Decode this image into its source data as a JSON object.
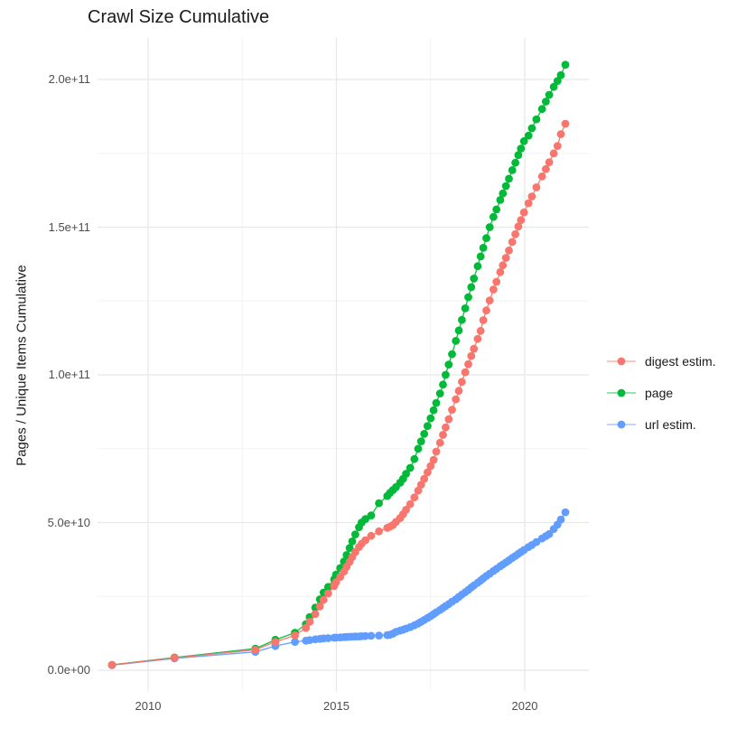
{
  "chart_data": {
    "type": "scatter",
    "title": "Crawl Size Cumulative",
    "xlabel": "",
    "ylabel": "Pages / Unique Items Cumulative",
    "legend_position": "right",
    "grid": true,
    "x_unit": "year (decimal, crawl date)",
    "y_unit": "cumulative count; stored as billions (value * 1e9)",
    "xlim": [
      2008.65,
      2021.7
    ],
    "ylim": [
      -7000000000,
      214000000000
    ],
    "xticks": [
      {
        "label": "2010",
        "year": 2010
      },
      {
        "label": "2015",
        "year": 2015
      },
      {
        "label": "2020",
        "year": 2020
      }
    ],
    "yticks": [
      {
        "label": "0.0e+00",
        "billions": 0
      },
      {
        "label": "5.0e+10",
        "billions": 50
      },
      {
        "label": "1.0e+11",
        "billions": 100
      },
      {
        "label": "1.5e+11",
        "billions": 150
      },
      {
        "label": "2.0e+11",
        "billions": 200
      }
    ],
    "x_minor_gridlines_years": [
      2012.5,
      2017.5
    ],
    "y_minor_gridlines_billions": [
      25,
      75,
      125,
      175
    ],
    "x": [
      2009.04,
      2010.7,
      2012.85,
      2013.38,
      2013.9,
      2014.19,
      2014.29,
      2014.44,
      2014.56,
      2014.66,
      2014.78,
      2014.94,
      2014.99,
      2015.1,
      2015.2,
      2015.27,
      2015.35,
      2015.42,
      2015.5,
      2015.6,
      2015.67,
      2015.77,
      2015.92,
      2016.13,
      2016.35,
      2016.42,
      2016.5,
      2016.58,
      2016.69,
      2016.77,
      2016.85,
      2016.96,
      2017.07,
      2017.17,
      2017.25,
      2017.33,
      2017.42,
      2017.5,
      2017.58,
      2017.65,
      2017.75,
      2017.83,
      2017.9,
      2017.98,
      2018.07,
      2018.17,
      2018.25,
      2018.33,
      2018.42,
      2018.5,
      2018.58,
      2018.65,
      2018.75,
      2018.83,
      2018.9,
      2018.98,
      2019.07,
      2019.17,
      2019.25,
      2019.35,
      2019.42,
      2019.5,
      2019.58,
      2019.67,
      2019.75,
      2019.83,
      2019.9,
      2019.98,
      2020.1,
      2020.19,
      2020.31,
      2020.46,
      2020.56,
      2020.65,
      2020.77,
      2020.87,
      2020.96,
      2021.08
    ],
    "series": [
      {
        "name": "digest estim.",
        "color": "#F8766D",
        "values_billions": [
          1.8,
          4.2,
          6.9,
          9.6,
          11.8,
          14.3,
          16.4,
          19.0,
          21.6,
          23.8,
          26.0,
          28.5,
          29.8,
          31.6,
          33.4,
          35.0,
          36.7,
          38.3,
          40.0,
          41.7,
          42.8,
          44.0,
          45.5,
          47.0,
          48.2,
          48.6,
          49.2,
          50.2,
          51.5,
          52.8,
          54.3,
          56.2,
          58.5,
          60.8,
          62.8,
          64.8,
          67.0,
          69.1,
          71.2,
          74.0,
          77.0,
          79.7,
          82.2,
          85.0,
          88.2,
          91.7,
          94.6,
          97.6,
          100.9,
          103.6,
          106.4,
          108.8,
          112.2,
          114.9,
          118.5,
          121.8,
          125.2,
          128.9,
          131.5,
          134.8,
          137.1,
          139.6,
          142.1,
          145.0,
          147.6,
          150.2,
          152.4,
          155.0,
          158.1,
          160.4,
          163.5,
          167.2,
          169.7,
          172.0,
          175.0,
          177.5,
          181.5,
          185.0
        ]
      },
      {
        "name": "page",
        "color": "#00BA38",
        "values_billions": [
          1.8,
          4.3,
          7.3,
          10.3,
          12.7,
          15.6,
          18.0,
          21.2,
          24.0,
          26.3,
          28.2,
          30.8,
          32.4,
          34.6,
          36.8,
          39.0,
          41.4,
          43.6,
          46.0,
          48.4,
          50.0,
          51.2,
          52.4,
          56.5,
          59.0,
          60.0,
          61.0,
          62.0,
          63.5,
          64.8,
          66.5,
          68.5,
          71.5,
          75.0,
          77.5,
          80.0,
          82.7,
          85.3,
          88.0,
          90.5,
          93.7,
          96.7,
          100.0,
          103.5,
          107.0,
          111.5,
          115.0,
          118.6,
          122.5,
          126.3,
          129.7,
          132.6,
          136.8,
          140.1,
          143.0,
          146.3,
          150.0,
          153.5,
          156.0,
          159.2,
          161.4,
          163.9,
          166.4,
          169.3,
          171.8,
          174.4,
          176.6,
          179.1,
          181.0,
          183.5,
          186.5,
          190.0,
          192.5,
          194.8,
          197.5,
          199.5,
          201.5,
          205.0
        ]
      },
      {
        "name": "url estim.",
        "color": "#619CFF",
        "values_billions": [
          1.7,
          4.0,
          6.2,
          8.2,
          9.6,
          10.0,
          10.2,
          10.45,
          10.6,
          10.75,
          10.85,
          11.0,
          11.05,
          11.1,
          11.2,
          11.25,
          11.3,
          11.35,
          11.4,
          11.45,
          11.5,
          11.55,
          11.65,
          11.75,
          11.9,
          12.0,
          12.4,
          13.0,
          13.4,
          13.7,
          14.1,
          14.6,
          15.2,
          15.8,
          16.4,
          17.0,
          17.7,
          18.3,
          19.0,
          19.6,
          20.4,
          21.1,
          21.7,
          22.4,
          23.2,
          24.0,
          24.8,
          25.6,
          26.4,
          27.2,
          28.0,
          28.7,
          29.6,
          30.4,
          31.1,
          31.9,
          32.7,
          33.6,
          34.3,
          35.2,
          35.8,
          36.5,
          37.2,
          38.0,
          38.7,
          39.4,
          40.0,
          40.7,
          41.7,
          42.4,
          43.4,
          44.6,
          45.4,
          46.1,
          47.8,
          49.3,
          51.0,
          53.5
        ]
      }
    ],
    "style": {
      "background_color": "#ffffff",
      "major_gridline_color": "#e8e8e8",
      "minor_gridline_color": "#f3f3f3",
      "tick_label_color": "#4d4d4d",
      "title_color": "#1a1a1a",
      "point_radius_px": 4.4
    }
  }
}
